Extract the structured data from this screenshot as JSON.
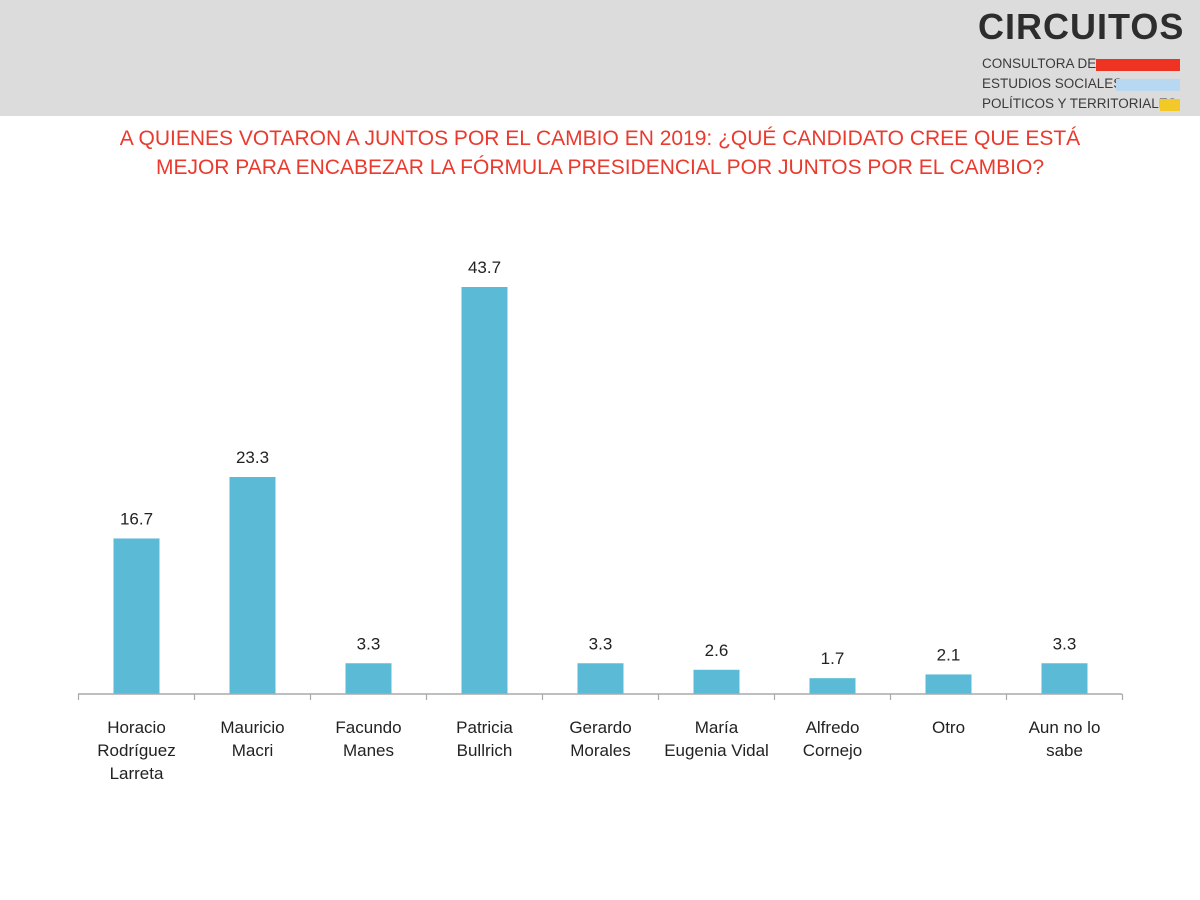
{
  "header": {
    "logo_name": "CIRCUITOS",
    "logo_lines": [
      "CONSULTORA DE",
      "ESTUDIOS SOCIALES,",
      "POLÍTICOS Y TERRITORIALES"
    ],
    "stripe_colors": [
      "#ee3322",
      "#b8d8f2",
      "#f3c928"
    ]
  },
  "title_lines": [
    "A QUIENES VOTARON A JUNTOS POR EL CAMBIO EN 2019: ¿QUÉ CANDIDATO CREE QUE ESTÁ",
    "MEJOR PARA ENCABEZAR LA FÓRMULA PRESIDENCIAL POR JUNTOS POR EL CAMBIO?"
  ],
  "colors": {
    "bar": "#5bbad5",
    "title": "#ea3a2e",
    "axis": "#aaaaaa"
  },
  "chart_data": {
    "type": "bar",
    "title": "A QUIENES VOTARON A JUNTOS POR EL CAMBIO EN 2019: ¿QUÉ CANDIDATO CREE QUE ESTÁ MEJOR PARA ENCABEZAR LA FÓRMULA PRESIDENCIAL POR JUNTOS POR EL CAMBIO?",
    "categories": [
      "Horacio Rodríguez Larreta",
      "Mauricio Macri",
      "Facundo Manes",
      "Patricia Bullrich",
      "Gerardo Morales",
      "María Eugenia Vidal",
      "Alfredo Cornejo",
      "Otro",
      "Aun no lo sabe"
    ],
    "category_lines": [
      [
        "Horacio",
        "Rodríguez",
        "Larreta"
      ],
      [
        "Mauricio",
        "Macri"
      ],
      [
        "Facundo",
        "Manes"
      ],
      [
        "Patricia",
        "Bullrich"
      ],
      [
        "Gerardo",
        "Morales"
      ],
      [
        "María",
        "Eugenia Vidal"
      ],
      [
        "Alfredo",
        "Cornejo"
      ],
      [
        "Otro"
      ],
      [
        "Aun no lo",
        "sabe"
      ]
    ],
    "values": [
      16.7,
      23.3,
      3.3,
      43.7,
      3.3,
      2.6,
      1.7,
      2.1,
      3.3
    ],
    "value_labels": [
      "16.7",
      "23.3",
      "3.3",
      "43.7",
      "3.3",
      "2.6",
      "1.7",
      "2.1",
      "3.3"
    ],
    "ylim": [
      0,
      43.7
    ],
    "grid": false,
    "xlabel": "",
    "ylabel": ""
  }
}
